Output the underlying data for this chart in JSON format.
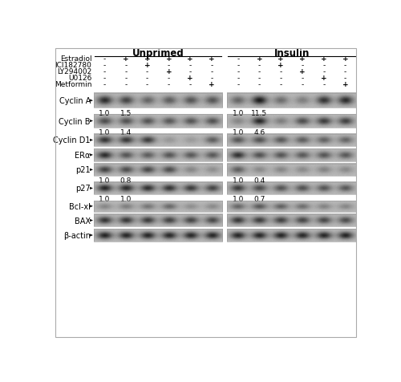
{
  "title_unprimed": "Unprimed",
  "title_insulin": "Insulin",
  "treatment_labels": [
    "Estradiol",
    "ICI182780",
    "LY294002",
    "U0126",
    "Metformin"
  ],
  "unprimed_treatments": [
    [
      "-",
      "+",
      "+",
      "+",
      "+",
      "+"
    ],
    [
      "-",
      "-",
      "+",
      "-",
      "-",
      "-"
    ],
    [
      "-",
      "-",
      "-",
      "+",
      "-",
      "-"
    ],
    [
      "-",
      "-",
      "-",
      "-",
      "+",
      "-"
    ],
    [
      "-",
      "-",
      "-",
      "-",
      "-",
      "+"
    ]
  ],
  "insulin_treatments": [
    [
      "-",
      "+",
      "+",
      "+",
      "+",
      "+"
    ],
    [
      "-",
      "-",
      "+",
      "-",
      "-",
      "-"
    ],
    [
      "-",
      "-",
      "-",
      "+",
      "-",
      "-"
    ],
    [
      "-",
      "-",
      "-",
      "-",
      "+",
      "-"
    ],
    [
      "-",
      "-",
      "-",
      "-",
      "-",
      "+"
    ]
  ],
  "protein_labels": [
    "Cyclin A",
    "Cyclin B",
    "Cyclin D1",
    "ERα",
    "p21",
    "p27",
    "Bcl-xl",
    "BAX",
    "β-actin"
  ],
  "densitometry": {
    "Cyclin A": {
      "unprimed": [
        "1.0",
        "1.5"
      ],
      "insulin": [
        "1.0",
        "11.5"
      ]
    },
    "Cyclin B": {
      "unprimed": [
        "1.0",
        "1.4"
      ],
      "insulin": [
        "1.0",
        "4.6"
      ]
    },
    "p21": {
      "unprimed": [
        "1.0",
        "0.8"
      ],
      "insulin": [
        "1.0",
        "0.4"
      ]
    },
    "p27": {
      "unprimed": [
        "1.0",
        "1.0"
      ],
      "insulin": [
        "1.0",
        "0.7"
      ]
    }
  },
  "outer_bg": "#ffffff",
  "panel_bg_gray": 0.72,
  "font_size_title": 8.5,
  "font_size_label": 7.0,
  "font_size_treatment": 6.5,
  "font_size_densitometry": 6.5,
  "blot_data": {
    "Cyclin A": {
      "unprimed": [
        0.85,
        0.7,
        0.5,
        0.55,
        0.6,
        0.6
      ],
      "insulin": [
        0.5,
        0.95,
        0.45,
        0.35,
        0.8,
        0.85
      ]
    },
    "Cyclin B": {
      "unprimed": [
        0.65,
        0.62,
        0.6,
        0.58,
        0.6,
        0.62
      ],
      "insulin": [
        0.3,
        0.88,
        0.35,
        0.65,
        0.75,
        0.72
      ]
    },
    "Cyclin D1": {
      "unprimed": [
        0.8,
        0.78,
        0.75,
        0.2,
        0.18,
        0.55
      ],
      "insulin": [
        0.6,
        0.62,
        0.58,
        0.55,
        0.52,
        0.5
      ]
    },
    "ERa": {
      "unprimed": [
        0.85,
        0.6,
        0.55,
        0.6,
        0.58,
        0.58
      ],
      "insulin": [
        0.82,
        0.62,
        0.6,
        0.58,
        0.6,
        0.58
      ]
    },
    "p21": {
      "unprimed": [
        0.72,
        0.65,
        0.68,
        0.65,
        0.3,
        0.25
      ],
      "insulin": [
        0.55,
        0.28,
        0.3,
        0.28,
        0.32,
        0.28
      ]
    },
    "p27": {
      "unprimed": [
        0.88,
        0.85,
        0.82,
        0.8,
        0.75,
        0.7
      ],
      "insulin": [
        0.75,
        0.65,
        0.6,
        0.62,
        0.6,
        0.58
      ]
    },
    "Bcl-xl": {
      "unprimed": [
        0.3,
        0.35,
        0.4,
        0.48,
        0.25,
        0.28
      ],
      "insulin": [
        0.5,
        0.58,
        0.52,
        0.45,
        0.32,
        0.3
      ]
    },
    "BAX": {
      "unprimed": [
        0.8,
        0.78,
        0.75,
        0.72,
        0.7,
        0.68
      ],
      "insulin": [
        0.78,
        0.75,
        0.72,
        0.7,
        0.68,
        0.65
      ]
    },
    "b-actin": {
      "unprimed": [
        0.9,
        0.88,
        0.88,
        0.87,
        0.87,
        0.88
      ],
      "insulin": [
        0.88,
        0.87,
        0.88,
        0.87,
        0.88,
        0.9
      ]
    }
  }
}
